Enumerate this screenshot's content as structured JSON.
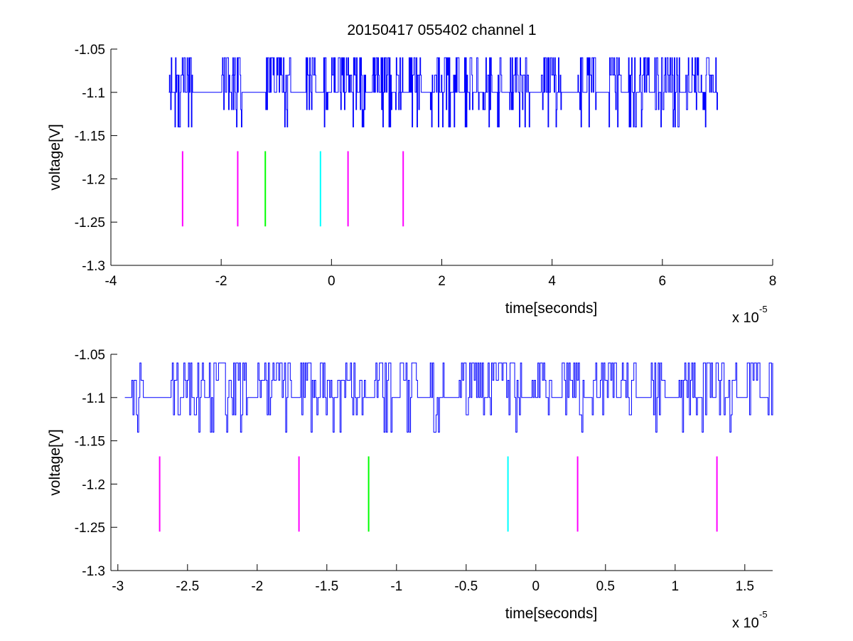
{
  "chart_data": [
    {
      "type": "line",
      "title": "20150417 055402 channel 1",
      "xlabel": "time[seconds]",
      "ylabel": "voltage[V]",
      "xlim": [
        -4,
        8
      ],
      "ylim": [
        -1.3,
        -1.05
      ],
      "x_scale_label": "x 10",
      "x_scale_exponent": "-5",
      "xticks": [
        -4,
        -2,
        0,
        2,
        4,
        6,
        8
      ],
      "xtick_labels": [
        "-4",
        "-2",
        "0",
        "2",
        "4",
        "6",
        "8"
      ],
      "yticks": [
        -1.3,
        -1.25,
        -1.2,
        -1.15,
        -1.1,
        -1.05
      ],
      "ytick_labels": [
        "-1.3",
        "-1.25",
        "-1.2",
        "-1.15",
        "-1.1",
        "-1.05"
      ],
      "grid": false,
      "signal": {
        "color": "#0000ff",
        "x_start": -2.95,
        "x_end": 7.0,
        "baseline": -1.1,
        "levels": [
          -1.14,
          -1.12,
          -1.1,
          -1.08,
          -1.06
        ]
      },
      "markers": [
        {
          "x": -2.7,
          "y_top": -1.168,
          "y_bottom": -1.255,
          "color": "#ff00ff"
        },
        {
          "x": -1.7,
          "y_top": -1.168,
          "y_bottom": -1.255,
          "color": "#ff00ff"
        },
        {
          "x": -1.2,
          "y_top": -1.168,
          "y_bottom": -1.255,
          "color": "#00ff00"
        },
        {
          "x": -0.2,
          "y_top": -1.168,
          "y_bottom": -1.255,
          "color": "#00ffff"
        },
        {
          "x": 0.3,
          "y_top": -1.168,
          "y_bottom": -1.255,
          "color": "#ff00ff"
        },
        {
          "x": 1.3,
          "y_top": -1.168,
          "y_bottom": -1.255,
          "color": "#ff00ff"
        }
      ]
    },
    {
      "type": "line",
      "title": "",
      "xlabel": "time[seconds]",
      "ylabel": "voltage[V]",
      "xlim": [
        -3.05,
        1.7
      ],
      "ylim": [
        -1.3,
        -1.05
      ],
      "x_scale_label": "x 10",
      "x_scale_exponent": "-5",
      "xticks": [
        -3,
        -2.5,
        -2,
        -1.5,
        -1,
        -0.5,
        0,
        0.5,
        1,
        1.5
      ],
      "xtick_labels": [
        "-3",
        "-2.5",
        "-2",
        "-1.5",
        "-1",
        "-0.5",
        "0",
        "0.5",
        "1",
        "1.5"
      ],
      "yticks": [
        -1.3,
        -1.25,
        -1.2,
        -1.15,
        -1.1,
        -1.05
      ],
      "ytick_labels": [
        "-1.3",
        "-1.25",
        "-1.2",
        "-1.15",
        "-1.1",
        "-1.05"
      ],
      "grid": false,
      "signal": {
        "color": "#0000ff",
        "x_start": -2.95,
        "x_end": 1.7,
        "baseline": -1.1,
        "levels": [
          -1.14,
          -1.12,
          -1.1,
          -1.08,
          -1.06
        ]
      },
      "markers": [
        {
          "x": -2.7,
          "y_top": -1.168,
          "y_bottom": -1.255,
          "color": "#ff00ff"
        },
        {
          "x": -1.7,
          "y_top": -1.168,
          "y_bottom": -1.255,
          "color": "#ff00ff"
        },
        {
          "x": -1.2,
          "y_top": -1.168,
          "y_bottom": -1.255,
          "color": "#00ff00"
        },
        {
          "x": -0.2,
          "y_top": -1.168,
          "y_bottom": -1.255,
          "color": "#00ffff"
        },
        {
          "x": 0.3,
          "y_top": -1.168,
          "y_bottom": -1.255,
          "color": "#ff00ff"
        },
        {
          "x": 1.3,
          "y_top": -1.168,
          "y_bottom": -1.255,
          "color": "#ff00ff"
        }
      ]
    }
  ]
}
